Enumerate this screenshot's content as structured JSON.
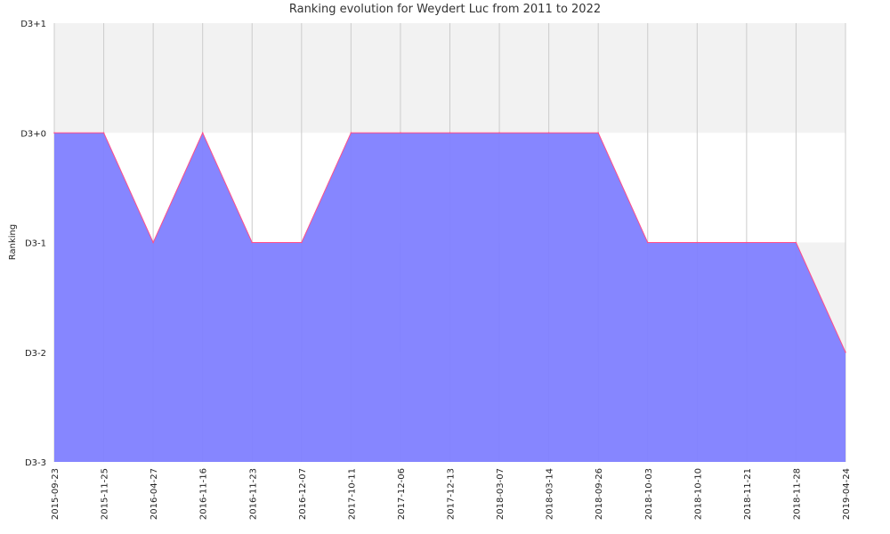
{
  "chart_data": {
    "type": "area",
    "title": "Ranking evolution for Weydert Luc from 2011 to 2022",
    "xlabel": "",
    "ylabel": "Ranking",
    "y_ticks": [
      "D3-3",
      "D3-2",
      "D3-1",
      "D3+0",
      "D3+1"
    ],
    "ylim": [
      0,
      4
    ],
    "x": [
      "2015-09-23",
      "2015-11-25",
      "2016-04-27",
      "2016-11-16",
      "2016-11-23",
      "2016-12-07",
      "2017-10-11",
      "2017-12-06",
      "2017-12-13",
      "2018-03-07",
      "2018-03-14",
      "2018-09-26",
      "2018-10-03",
      "2018-10-10",
      "2018-11-21",
      "2018-11-28",
      "2019-04-24"
    ],
    "series": [
      {
        "values": [
          "D3+0",
          "D3+0",
          "D3-1",
          "D3+0",
          "D3-1",
          "D3-1",
          "D3+0",
          "D3+0",
          "D3+0",
          "D3+0",
          "D3+0",
          "D3+0",
          "D3-1",
          "D3-1",
          "D3-1",
          "D3-1",
          "D3-2"
        ]
      }
    ],
    "grid": true,
    "colors": {
      "fill": "#7f7fff",
      "line": "#ff4d8a",
      "band_alt": "#f2f2f2",
      "grid": "#cccccc"
    }
  }
}
